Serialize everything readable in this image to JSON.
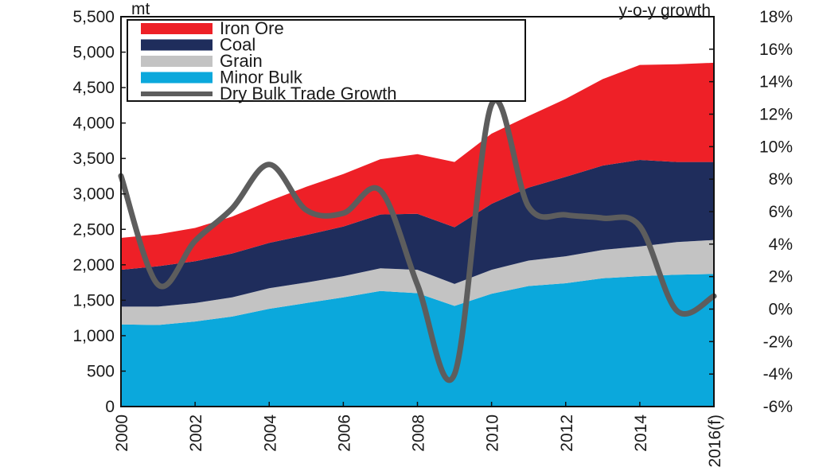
{
  "chart_data": {
    "type": "area",
    "title": "",
    "left_axis_unit": "mt",
    "right_axis_unit": "y-o-y growth",
    "x": [
      2000,
      2001,
      2002,
      2003,
      2004,
      2005,
      2006,
      2007,
      2008,
      2009,
      2010,
      2011,
      2012,
      2013,
      2014,
      2015,
      2016
    ],
    "x_tick_labels": [
      "2000",
      "2002",
      "2004",
      "2006",
      "2008",
      "2010",
      "2012",
      "2014",
      "2016(f)"
    ],
    "x_tick_values": [
      2000,
      2002,
      2004,
      2006,
      2008,
      2010,
      2012,
      2014,
      2016
    ],
    "y_left_ticks": [
      {
        "value": 0,
        "label": "0"
      },
      {
        "value": 500,
        "label": "500"
      },
      {
        "value": 1000,
        "label": "1,000"
      },
      {
        "value": 1500,
        "label": "1,500"
      },
      {
        "value": 2000,
        "label": "2,000"
      },
      {
        "value": 2500,
        "label": "2,500"
      },
      {
        "value": 3000,
        "label": "3,000"
      },
      {
        "value": 3500,
        "label": "3,500"
      },
      {
        "value": 4000,
        "label": "4,000"
      },
      {
        "value": 4500,
        "label": "4,500"
      },
      {
        "value": 5000,
        "label": "5,000"
      },
      {
        "value": 5500,
        "label": "5,500"
      }
    ],
    "y_right_ticks": [
      {
        "value": -6,
        "label": "-6%"
      },
      {
        "value": -4,
        "label": "-4%"
      },
      {
        "value": -2,
        "label": "-2%"
      },
      {
        "value": 0,
        "label": "0%"
      },
      {
        "value": 2,
        "label": "2%"
      },
      {
        "value": 4,
        "label": "4%"
      },
      {
        "value": 6,
        "label": "6%"
      },
      {
        "value": 8,
        "label": "8%"
      },
      {
        "value": 10,
        "label": "10%"
      },
      {
        "value": 12,
        "label": "12%"
      },
      {
        "value": 14,
        "label": "14%"
      },
      {
        "value": 16,
        "label": "16%"
      },
      {
        "value": 18,
        "label": "18%"
      }
    ],
    "ylim_left": [
      0,
      5500
    ],
    "ylim_right": [
      -6,
      18
    ],
    "stacked_series": [
      {
        "name": "Minor Bulk",
        "color": "#0ba8dc",
        "values": [
          1160,
          1150,
          1200,
          1270,
          1380,
          1460,
          1540,
          1630,
          1600,
          1420,
          1590,
          1700,
          1740,
          1810,
          1840,
          1860,
          1870
        ]
      },
      {
        "name": "Grain",
        "color": "#c3c3c3",
        "values": [
          250,
          260,
          260,
          270,
          290,
          290,
          300,
          320,
          330,
          310,
          340,
          360,
          380,
          400,
          420,
          460,
          480
        ]
      },
      {
        "name": "Coal",
        "color": "#1f2d5c",
        "values": [
          520,
          570,
          590,
          620,
          640,
          670,
          700,
          760,
          790,
          800,
          930,
          1030,
          1120,
          1190,
          1220,
          1130,
          1100
        ]
      },
      {
        "name": "Iron Ore",
        "color": "#ee2027",
        "values": [
          450,
          450,
          470,
          520,
          590,
          680,
          740,
          780,
          840,
          920,
          990,
          1010,
          1100,
          1220,
          1340,
          1380,
          1400
        ]
      }
    ],
    "line_series": {
      "name": "Dry Bulk Trade Growth",
      "color": "#5d5d5d",
      "axis": "right",
      "values": [
        8.2,
        1.5,
        4.2,
        6.2,
        8.9,
        6.1,
        5.9,
        7.3,
        1.5,
        -4.0,
        12.6,
        6.3,
        5.8,
        5.6,
        5.1,
        -0.1,
        0.8
      ]
    },
    "legend_position": "top-left",
    "grid": false
  }
}
